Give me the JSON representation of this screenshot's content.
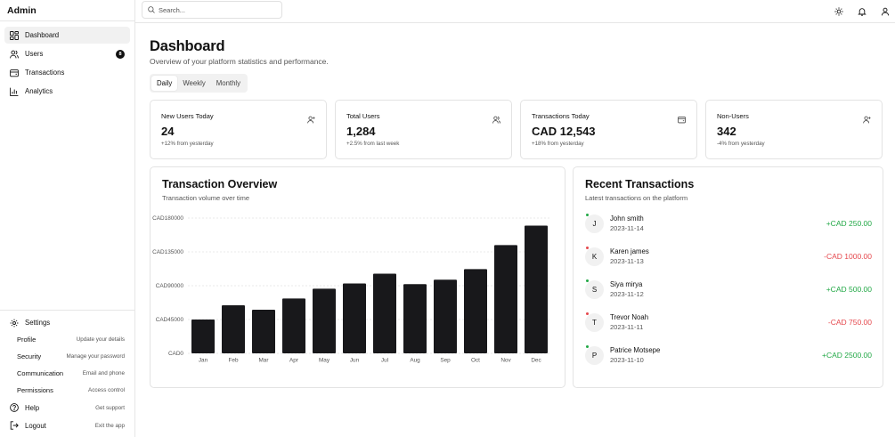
{
  "app": {
    "brand": "Admin"
  },
  "sidebar": {
    "items": [
      {
        "label": "Dashboard",
        "icon": "dashboard-icon"
      },
      {
        "label": "Users",
        "icon": "users-icon",
        "badge": "8"
      },
      {
        "label": "Transactions",
        "icon": "wallet-icon"
      },
      {
        "label": "Analytics",
        "icon": "bar-chart-icon"
      }
    ],
    "settings": {
      "label": "Settings",
      "items": [
        {
          "label": "Profile",
          "desc": "Update your details"
        },
        {
          "label": "Security",
          "desc": "Manage your password"
        },
        {
          "label": "Communication",
          "desc": "Email and phone"
        },
        {
          "label": "Permissions",
          "desc": "Access control"
        }
      ]
    },
    "help": {
      "label": "Help",
      "desc": "Get support"
    },
    "logout": {
      "label": "Logout",
      "desc": "Exit the app"
    }
  },
  "header": {
    "search_placeholder": "Search...",
    "icons": [
      "sun-icon",
      "bell-icon",
      "user-icon"
    ]
  },
  "main": {
    "title": "Dashboard",
    "subtitle": "Overview of your platform statistics and performance.",
    "tabs": [
      "Daily",
      "Weekly",
      "Monthly"
    ],
    "active_tab": "Daily",
    "cards": [
      {
        "label": "New Users Today",
        "value": "24",
        "change": "+12% from yesterday",
        "icon": "user-plus-icon"
      },
      {
        "label": "Total Users",
        "value": "1,284",
        "change": "+2.5% from last week",
        "icon": "users-icon"
      },
      {
        "label": "Transactions Today",
        "value": "CAD 12,543",
        "change": "+18% from yesterday",
        "icon": "wallet-icon"
      },
      {
        "label": "Non-Users",
        "value": "342",
        "change": "-4% from yesterday",
        "icon": "user-plus-icon"
      }
    ],
    "overview": {
      "title": "Transaction Overview",
      "subtitle": "Transaction volume over time"
    },
    "recent": {
      "title": "Recent Transactions",
      "subtitle": "Latest transactions on the platform",
      "items": [
        {
          "initial": "J",
          "name": "John smith",
          "date": "2023-11-14",
          "amount": "+CAD 250.00",
          "type": "credit"
        },
        {
          "initial": "K",
          "name": "Karen james",
          "date": "2023-11-13",
          "amount": "-CAD 1000.00",
          "type": "debit"
        },
        {
          "initial": "S",
          "name": "Siya mirya",
          "date": "2023-11-12",
          "amount": "+CAD 500.00",
          "type": "credit"
        },
        {
          "initial": "T",
          "name": "Trevor Noah",
          "date": "2023-11-11",
          "amount": "-CAD 750.00",
          "type": "debit"
        },
        {
          "initial": "P",
          "name": "Patrice Motsepe",
          "date": "2023-11-10",
          "amount": "+CAD 2500.00",
          "type": "credit"
        }
      ]
    }
  },
  "colors": {
    "credit": "#22a846",
    "debit": "#e5484d",
    "bar": "#18181b"
  },
  "chart_data": {
    "type": "bar",
    "categories": [
      "Jan",
      "Feb",
      "Mar",
      "Apr",
      "May",
      "Jun",
      "Jul",
      "Aug",
      "Sep",
      "Oct",
      "Nov",
      "Dec"
    ],
    "values": [
      45000,
      64000,
      58000,
      73000,
      86000,
      93000,
      106000,
      92000,
      98000,
      112000,
      144000,
      170000
    ],
    "ylim": [
      0,
      180000
    ],
    "yticks": [
      0,
      45000,
      90000,
      135000,
      180000
    ],
    "ytick_labels": [
      "CAD0",
      "CAD45000",
      "CAD90000",
      "CAD135000",
      "CAD180000"
    ],
    "grid": true
  }
}
